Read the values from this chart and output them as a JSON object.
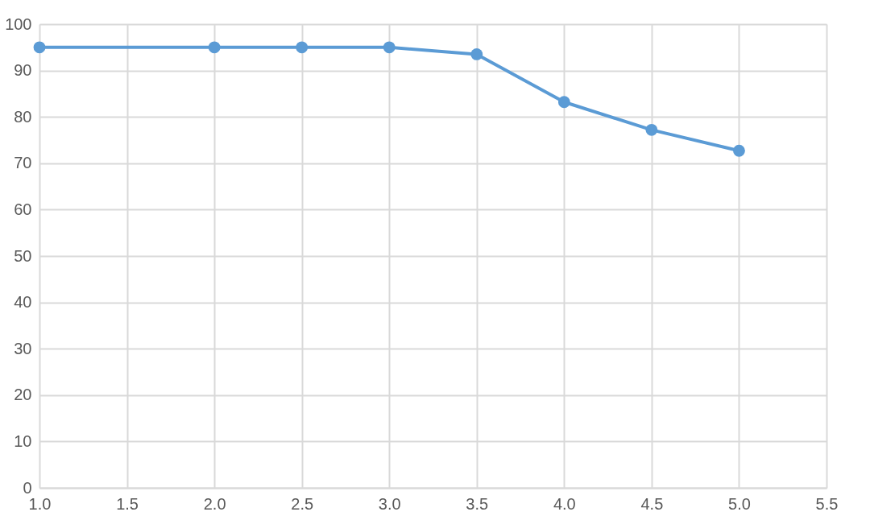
{
  "chart_data": {
    "type": "line",
    "x": [
      1.0,
      2.0,
      2.5,
      3.0,
      3.5,
      4.0,
      4.5,
      5.0
    ],
    "series": [
      {
        "color": "#5b9bd5",
        "values": [
          95,
          95,
          95,
          95,
          93.5,
          83.2,
          77.2,
          72.7
        ]
      }
    ],
    "xlim": [
      1.0,
      5.5
    ],
    "xticks": [
      {
        "value": 1.0,
        "label": "1.0"
      },
      {
        "value": 1.5,
        "label": "1.5"
      },
      {
        "value": 2.0,
        "label": "2.0"
      },
      {
        "value": 2.5,
        "label": "2.5"
      },
      {
        "value": 3.0,
        "label": "3.0"
      },
      {
        "value": 3.5,
        "label": "3.5"
      },
      {
        "value": 4.0,
        "label": "4.0"
      },
      {
        "value": 4.5,
        "label": "4.5"
      },
      {
        "value": 5.0,
        "label": "5.0"
      },
      {
        "value": 5.5,
        "label": "5.5"
      }
    ],
    "ylim": [
      0,
      100
    ],
    "yticks": [
      0,
      10,
      20,
      30,
      40,
      50,
      60,
      70,
      80,
      90,
      100
    ],
    "grid": true,
    "marker": "circle",
    "line_style": "solid"
  }
}
